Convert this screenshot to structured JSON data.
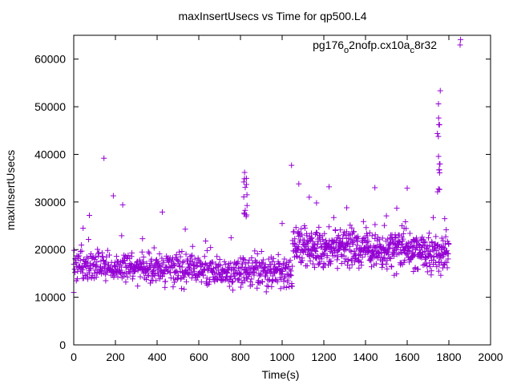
{
  "chart_data": {
    "type": "scatter",
    "title": "maxInsertUsecs vs Time for qp500.L4",
    "xlabel": "Time(s)",
    "ylabel": "maxInsertUsecs",
    "xlim": [
      0,
      2000
    ],
    "ylim": [
      0,
      65000
    ],
    "xticks": [
      0,
      200,
      400,
      600,
      800,
      1000,
      1200,
      1400,
      1600,
      1800,
      2000
    ],
    "yticks": [
      0,
      10000,
      20000,
      30000,
      40000,
      50000,
      60000
    ],
    "grid": false,
    "legend_position": "top-right",
    "marker": "+",
    "series_color": "#9400d3",
    "legend_label": {
      "base": "pg176",
      "sub1": "o",
      "mid": "2nofp.cx10a",
      "sub2": "c",
      "end": "8r32"
    },
    "segments": [
      {
        "x_start": 0,
        "x_end": 1050,
        "n": 700,
        "y_start": 16500,
        "y_end": 15000,
        "spread": 2200
      },
      {
        "x_start": 1050,
        "x_end": 1800,
        "n": 620,
        "y_start": 20500,
        "y_end": 19500,
        "spread": 2600
      }
    ],
    "clusters": [
      {
        "x": 825,
        "n": 14,
        "y_min": 26000,
        "y_max": 37000
      },
      {
        "x": 1750,
        "n": 16,
        "y_min": 32000,
        "y_max": 55000
      }
    ],
    "outliers": [
      [
        0,
        11000
      ],
      [
        45,
        24500
      ],
      [
        75,
        27200
      ],
      [
        145,
        39200
      ],
      [
        190,
        31300
      ],
      [
        235,
        29400
      ],
      [
        330,
        22300
      ],
      [
        425,
        27900
      ],
      [
        535,
        24300
      ],
      [
        640,
        19800
      ],
      [
        755,
        22500
      ],
      [
        1000,
        25500
      ],
      [
        1045,
        37700
      ],
      [
        1080,
        33800
      ],
      [
        1130,
        31000
      ],
      [
        1165,
        29800
      ],
      [
        1225,
        33200
      ],
      [
        1310,
        28800
      ],
      [
        1390,
        25900
      ],
      [
        1445,
        33000
      ],
      [
        1550,
        28700
      ],
      [
        1575,
        25000
      ],
      [
        1600,
        32900
      ],
      [
        1630,
        15400
      ],
      [
        1780,
        26500
      ],
      [
        1856,
        64100
      ]
    ]
  }
}
